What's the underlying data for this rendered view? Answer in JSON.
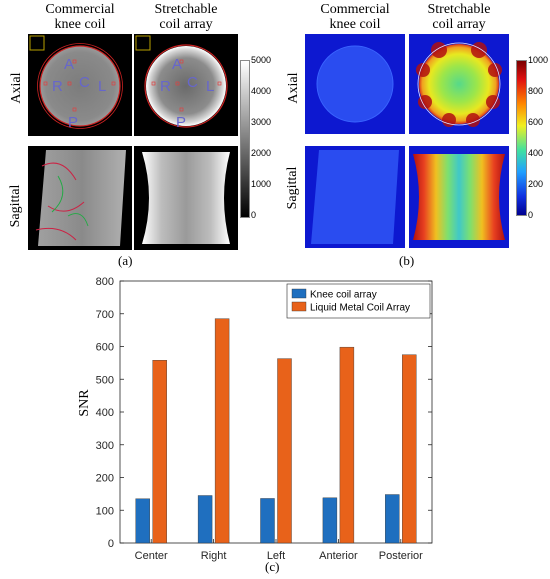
{
  "panel_a": {
    "label": "(a)",
    "col1": [
      "Commercial",
      "knee coil"
    ],
    "col2": [
      "Stretchable",
      "coil array"
    ],
    "row1": "Axial",
    "row2": "Sagittal",
    "roi_labels": [
      "A",
      "R",
      "C",
      "L",
      "P"
    ],
    "colorbar_ticks": [
      "5000",
      "4000",
      "3000",
      "2000",
      "1000",
      "0"
    ]
  },
  "panel_b": {
    "label": "(b)",
    "col1": [
      "Commercial",
      "knee coil"
    ],
    "col2": [
      "Stretchable",
      "coil array"
    ],
    "row1": "Axial",
    "row2": "Sagittal",
    "colorbar_ticks": [
      "1000",
      "800",
      "600",
      "400",
      "200",
      "0"
    ]
  },
  "panel_c_label": "(c)",
  "chart_data": {
    "type": "bar",
    "categories": [
      "Center",
      "Right",
      "Left",
      "Anterior",
      "Posterior"
    ],
    "series": [
      {
        "name": "Knee coil array",
        "values": [
          135,
          145,
          136,
          138,
          148
        ],
        "color": "#1f6fbf"
      },
      {
        "name": "Liquid Metal Coil Array",
        "values": [
          558,
          685,
          563,
          598,
          575
        ],
        "color": "#e8621a"
      }
    ],
    "ylabel": "SNR",
    "ylim": [
      0,
      800
    ],
    "yticks": [
      0,
      100,
      200,
      300,
      400,
      500,
      600,
      700,
      800
    ],
    "legend": "top-right",
    "grid": false
  }
}
